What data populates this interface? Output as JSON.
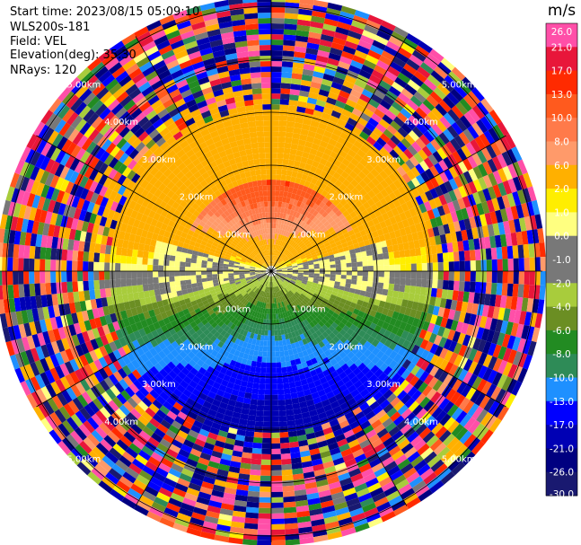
{
  "header": {
    "start_time": "Start time: 2023/08/15 05:09:10",
    "station": "WLS200s-181",
    "field": "Field: VEL",
    "elevation": "Elevation(deg): 35.30",
    "nrays": "NRays: 120"
  },
  "chart_data": {
    "type": "heatmap",
    "projection": "polar PPI",
    "field": "VEL",
    "unit": "m/s",
    "n_rays": 120,
    "range_rings_km": [
      1.0,
      2.0,
      3.0,
      4.0,
      5.0
    ],
    "range_ring_labels": [
      "1.00km",
      "2.00km",
      "3.00km",
      "4.00km",
      "5.00km"
    ],
    "clean_data_extent_km": 3.1,
    "colorbar_levels": [
      26.0,
      21.0,
      17.0,
      13.0,
      10.0,
      8.0,
      6.0,
      2.0,
      1.0,
      0.0,
      -1.0,
      -2.0,
      -4.0,
      -6.0,
      -8.0,
      -10.0,
      -13.0,
      -17.0,
      -21.0,
      -26.0,
      -30.0
    ],
    "colorbar_labels": [
      "26.0",
      "21.0",
      "17.0",
      "13.0",
      "10.0",
      "8.0",
      "6.0",
      "2.0",
      "1.0",
      "0.0",
      "-1.0",
      "-2.0",
      "-4.0",
      "-6.0",
      "-8.0",
      "-10.0",
      "-13.0",
      "-17.0",
      "-21.0",
      "-26.0",
      "-30.0"
    ],
    "colorbar_colors": [
      "#ff4fa8",
      "#e8163a",
      "#ff2a00",
      "#ff5a1e",
      "#ff7a4a",
      "#ff9a6a",
      "#ffb000",
      "#ffee00",
      "#ffff80",
      "#787878",
      "#787878",
      "#a8cc3c",
      "#6b8e23",
      "#228b22",
      "#2e8b57",
      "#1e90ff",
      "#0000ff",
      "#0000b4",
      "#000080",
      "#191970"
    ],
    "pattern": "Near ranges show a dipole: positive (orange/yellow) toward north, negative (green) toward south, near zero (grey) east-west; far ranges are noise."
  }
}
